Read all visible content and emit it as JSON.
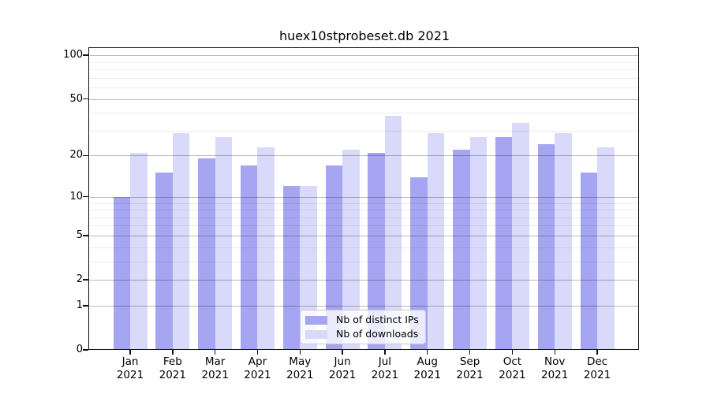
{
  "title": "huex10stprobeset.db 2021",
  "chart_data": {
    "type": "bar",
    "title": "huex10stprobeset.db 2021",
    "categories": [
      "Jan",
      "Feb",
      "Mar",
      "Apr",
      "May",
      "Jun",
      "Jul",
      "Aug",
      "Sep",
      "Oct",
      "Nov",
      "Dec"
    ],
    "year_label": "2021",
    "series": [
      {
        "name": "Nb of distinct IPs",
        "color": "#a5a5f2",
        "values": [
          10,
          15,
          19,
          17,
          12,
          17,
          21,
          14,
          22,
          27,
          24,
          15
        ]
      },
      {
        "name": "Nb of downloads",
        "color": "#d9d9fa",
        "values": [
          21,
          29,
          27,
          23,
          12,
          22,
          38,
          29,
          27,
          34,
          29,
          23
        ]
      }
    ],
    "xlabel": "",
    "ylabel": "",
    "y_scale": "log1p",
    "y_ticks": [
      0,
      1,
      2,
      5,
      10,
      20,
      50,
      100
    ],
    "y_minor_gridlines": [
      3,
      4,
      6,
      7,
      8,
      9,
      30,
      40,
      60,
      70,
      80,
      90
    ],
    "ylim": [
      0,
      111
    ],
    "grid": "horizontal, drawn above bars",
    "legend_position": "inside bottom-center",
    "frame_color": "#111111",
    "major_grid_color": "#bcbcbc",
    "minor_grid_color": "#ececec"
  }
}
